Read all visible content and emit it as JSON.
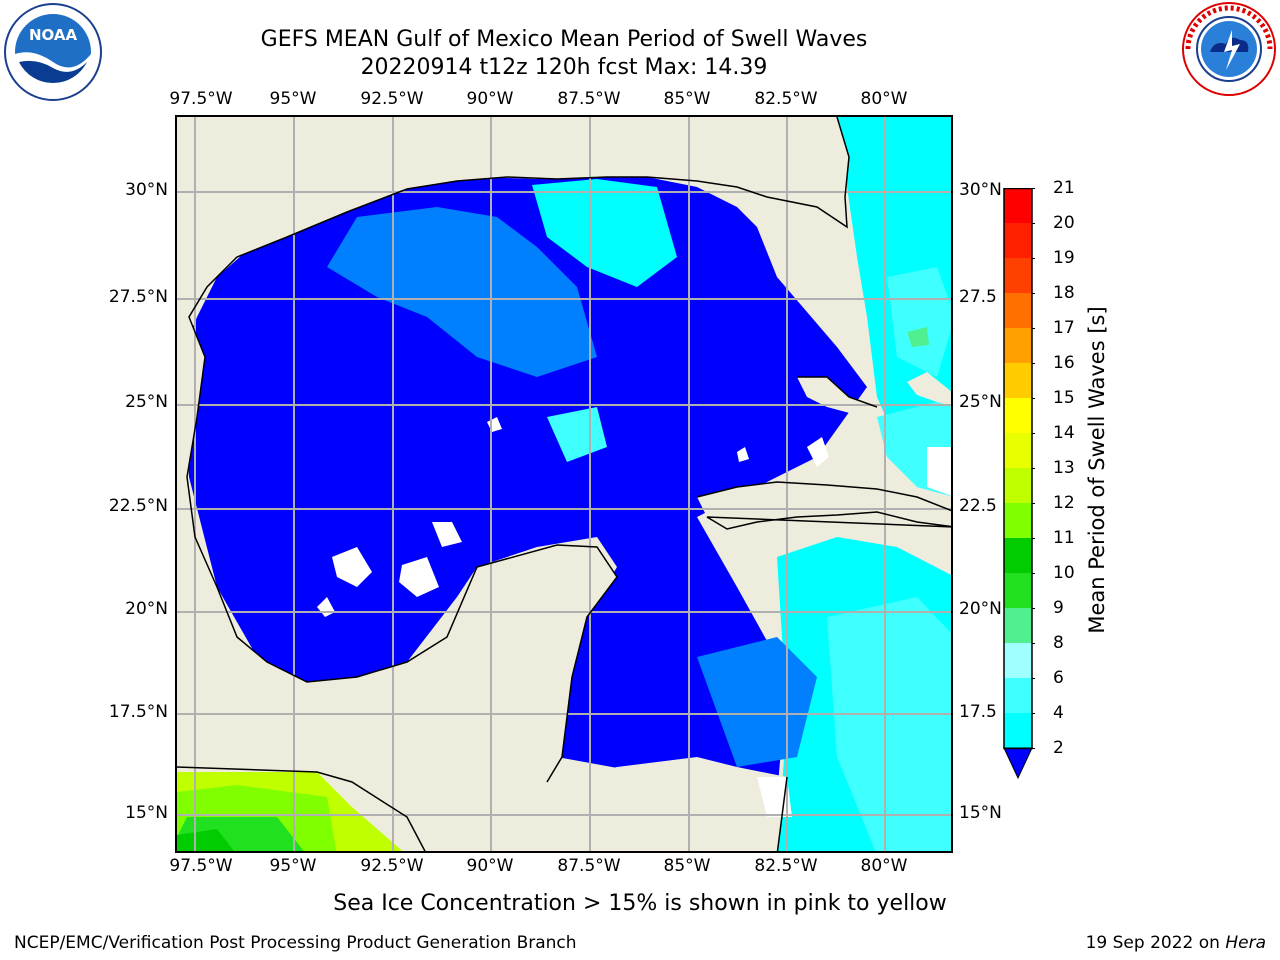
{
  "title": "GEFS MEAN Gulf of Mexico Mean Period of Swell Waves",
  "subtitle": "20220914 t12z 120h fcst   Max: 14.39",
  "lon_labels": [
    "97.5°W",
    "95°W",
    "92.5°W",
    "90°W",
    "87.5°W",
    "85°W",
    "82.5°W",
    "80°W"
  ],
  "lat_labels": [
    "30°N",
    "27.5°N",
    "25°N",
    "22.5°N",
    "20°N",
    "17.5°N",
    "15°N"
  ],
  "lat_labels_right": [
    "30°N",
    "27.5",
    "25°N",
    "22.5",
    "20°N",
    "17.5",
    "15°N"
  ],
  "colorbar": {
    "label": "Mean Period of Swell Waves [s]",
    "ticks": [
      "2",
      "4",
      "6",
      "8",
      "9",
      "10",
      "11",
      "12",
      "13",
      "14",
      "15",
      "16",
      "17",
      "18",
      "19",
      "20",
      "21"
    ],
    "colors": [
      "#0000ff",
      "#0080ff",
      "#00ffff",
      "#40ffff",
      "#a0ffff",
      "#50f090",
      "#20e020",
      "#00cc00",
      "#80ff00",
      "#c0ff00",
      "#e8ff00",
      "#ffff00",
      "#ffcc00",
      "#ffa000",
      "#ff7000",
      "#ff4000",
      "#ff2000",
      "#ff0000"
    ]
  },
  "caption": "Sea Ice Concentration > 15% is shown in pink to yellow",
  "footer_left": "NCEP/EMC/Verification Post Processing Product Generation Branch",
  "footer_date": "19 Sep 2022 on ",
  "footer_host": "Hera",
  "logos": {
    "left_name": "noaa-logo",
    "left_text": "NOAA",
    "right_name": "nws-logo"
  }
}
